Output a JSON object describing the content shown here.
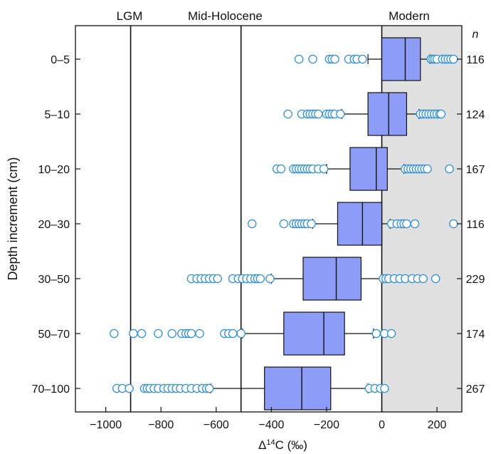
{
  "chart_data": {
    "type": "boxplot",
    "orientation": "horizontal",
    "xlabel_main": "Δ",
    "xlabel_sup": "14",
    "xlabel_rest": "C (‰)",
    "ylabel": "Depth increment (cm)",
    "n_header": "n",
    "xlim": [
      -1110,
      290
    ],
    "xticks": [
      -1000,
      -800,
      -600,
      -400,
      -200,
      0,
      200
    ],
    "xtick_labels": [
      "−1000",
      "−800",
      "−600",
      "−400",
      "−200",
      "0",
      "200"
    ],
    "shaded_region": {
      "from": 0,
      "to": 290,
      "color": "#e0e0e0"
    },
    "reference_lines": [
      {
        "label": "LGM",
        "x": -910
      },
      {
        "label": "Mid-Holocene",
        "x": -510
      },
      {
        "label": "Modern",
        "x": 0
      }
    ],
    "box_color": "#8c9cf7",
    "outlier_color": "#2f8fd8",
    "categories": [
      {
        "label": "0–5",
        "n": "116",
        "whisker_low": -50,
        "q1": 0,
        "median": 85,
        "q3": 140,
        "whisker_high": 175,
        "outliers": [
          -300,
          -250,
          -190,
          -180,
          -170,
          -120,
          -100,
          -90,
          -70,
          178,
          185,
          192,
          200,
          220,
          230,
          240,
          250,
          260
        ]
      },
      {
        "label": "5–10",
        "n": "124",
        "whisker_low": -145,
        "q1": -50,
        "median": 25,
        "q3": 90,
        "whisker_high": 135,
        "outliers": [
          -340,
          -290,
          -270,
          -260,
          -250,
          -240,
          -230,
          -200,
          -190,
          -180,
          -170,
          -150,
          140,
          150,
          160,
          170,
          180,
          190,
          200,
          210,
          215
        ]
      },
      {
        "label": "10–20",
        "n": "167",
        "whisker_low": -200,
        "q1": -115,
        "median": -20,
        "q3": 20,
        "whisker_high": 80,
        "outliers": [
          -380,
          -365,
          -320,
          -310,
          -300,
          -290,
          -280,
          -270,
          -260,
          -250,
          -230,
          -210,
          85,
          95,
          105,
          115,
          125,
          135,
          145,
          155,
          165,
          245
        ]
      },
      {
        "label": "20–30",
        "n": "116",
        "whisker_low": -250,
        "q1": -160,
        "median": -70,
        "q3": 0,
        "whisker_high": 30,
        "outliers": [
          -470,
          -355,
          -320,
          -310,
          -300,
          -290,
          -280,
          -270,
          -255,
          35,
          55,
          70,
          80,
          90,
          120,
          260
        ]
      },
      {
        "label": "30–50",
        "n": "229",
        "whisker_low": -400,
        "q1": -285,
        "median": -165,
        "q3": -75,
        "whisker_high": 0,
        "outliers": [
          -690,
          -670,
          -655,
          -640,
          -625,
          -610,
          -595,
          -540,
          -520,
          -505,
          -490,
          -475,
          -460,
          -450,
          -440,
          -405,
          5,
          15,
          25,
          45,
          65,
          85,
          110,
          130,
          150,
          195
        ]
      },
      {
        "label": "50–70",
        "n": "174",
        "whisker_low": -505,
        "q1": -355,
        "median": -210,
        "q3": -135,
        "whisker_high": -30,
        "outliers": [
          -970,
          -900,
          -870,
          -810,
          -760,
          -725,
          -710,
          -700,
          -690,
          -660,
          -570,
          -555,
          -540,
          -510,
          -20,
          10,
          35
        ]
      },
      {
        "label": "70–100",
        "n": "267",
        "whisker_low": -620,
        "q1": -425,
        "median": -290,
        "q3": -185,
        "whisker_high": -50,
        "outliers": [
          -960,
          -940,
          -915,
          -860,
          -850,
          -840,
          -825,
          -810,
          -790,
          -775,
          -760,
          -745,
          -730,
          -710,
          -690,
          -670,
          -650,
          -635,
          -625,
          -45,
          -25,
          -5,
          10
        ]
      }
    ]
  }
}
